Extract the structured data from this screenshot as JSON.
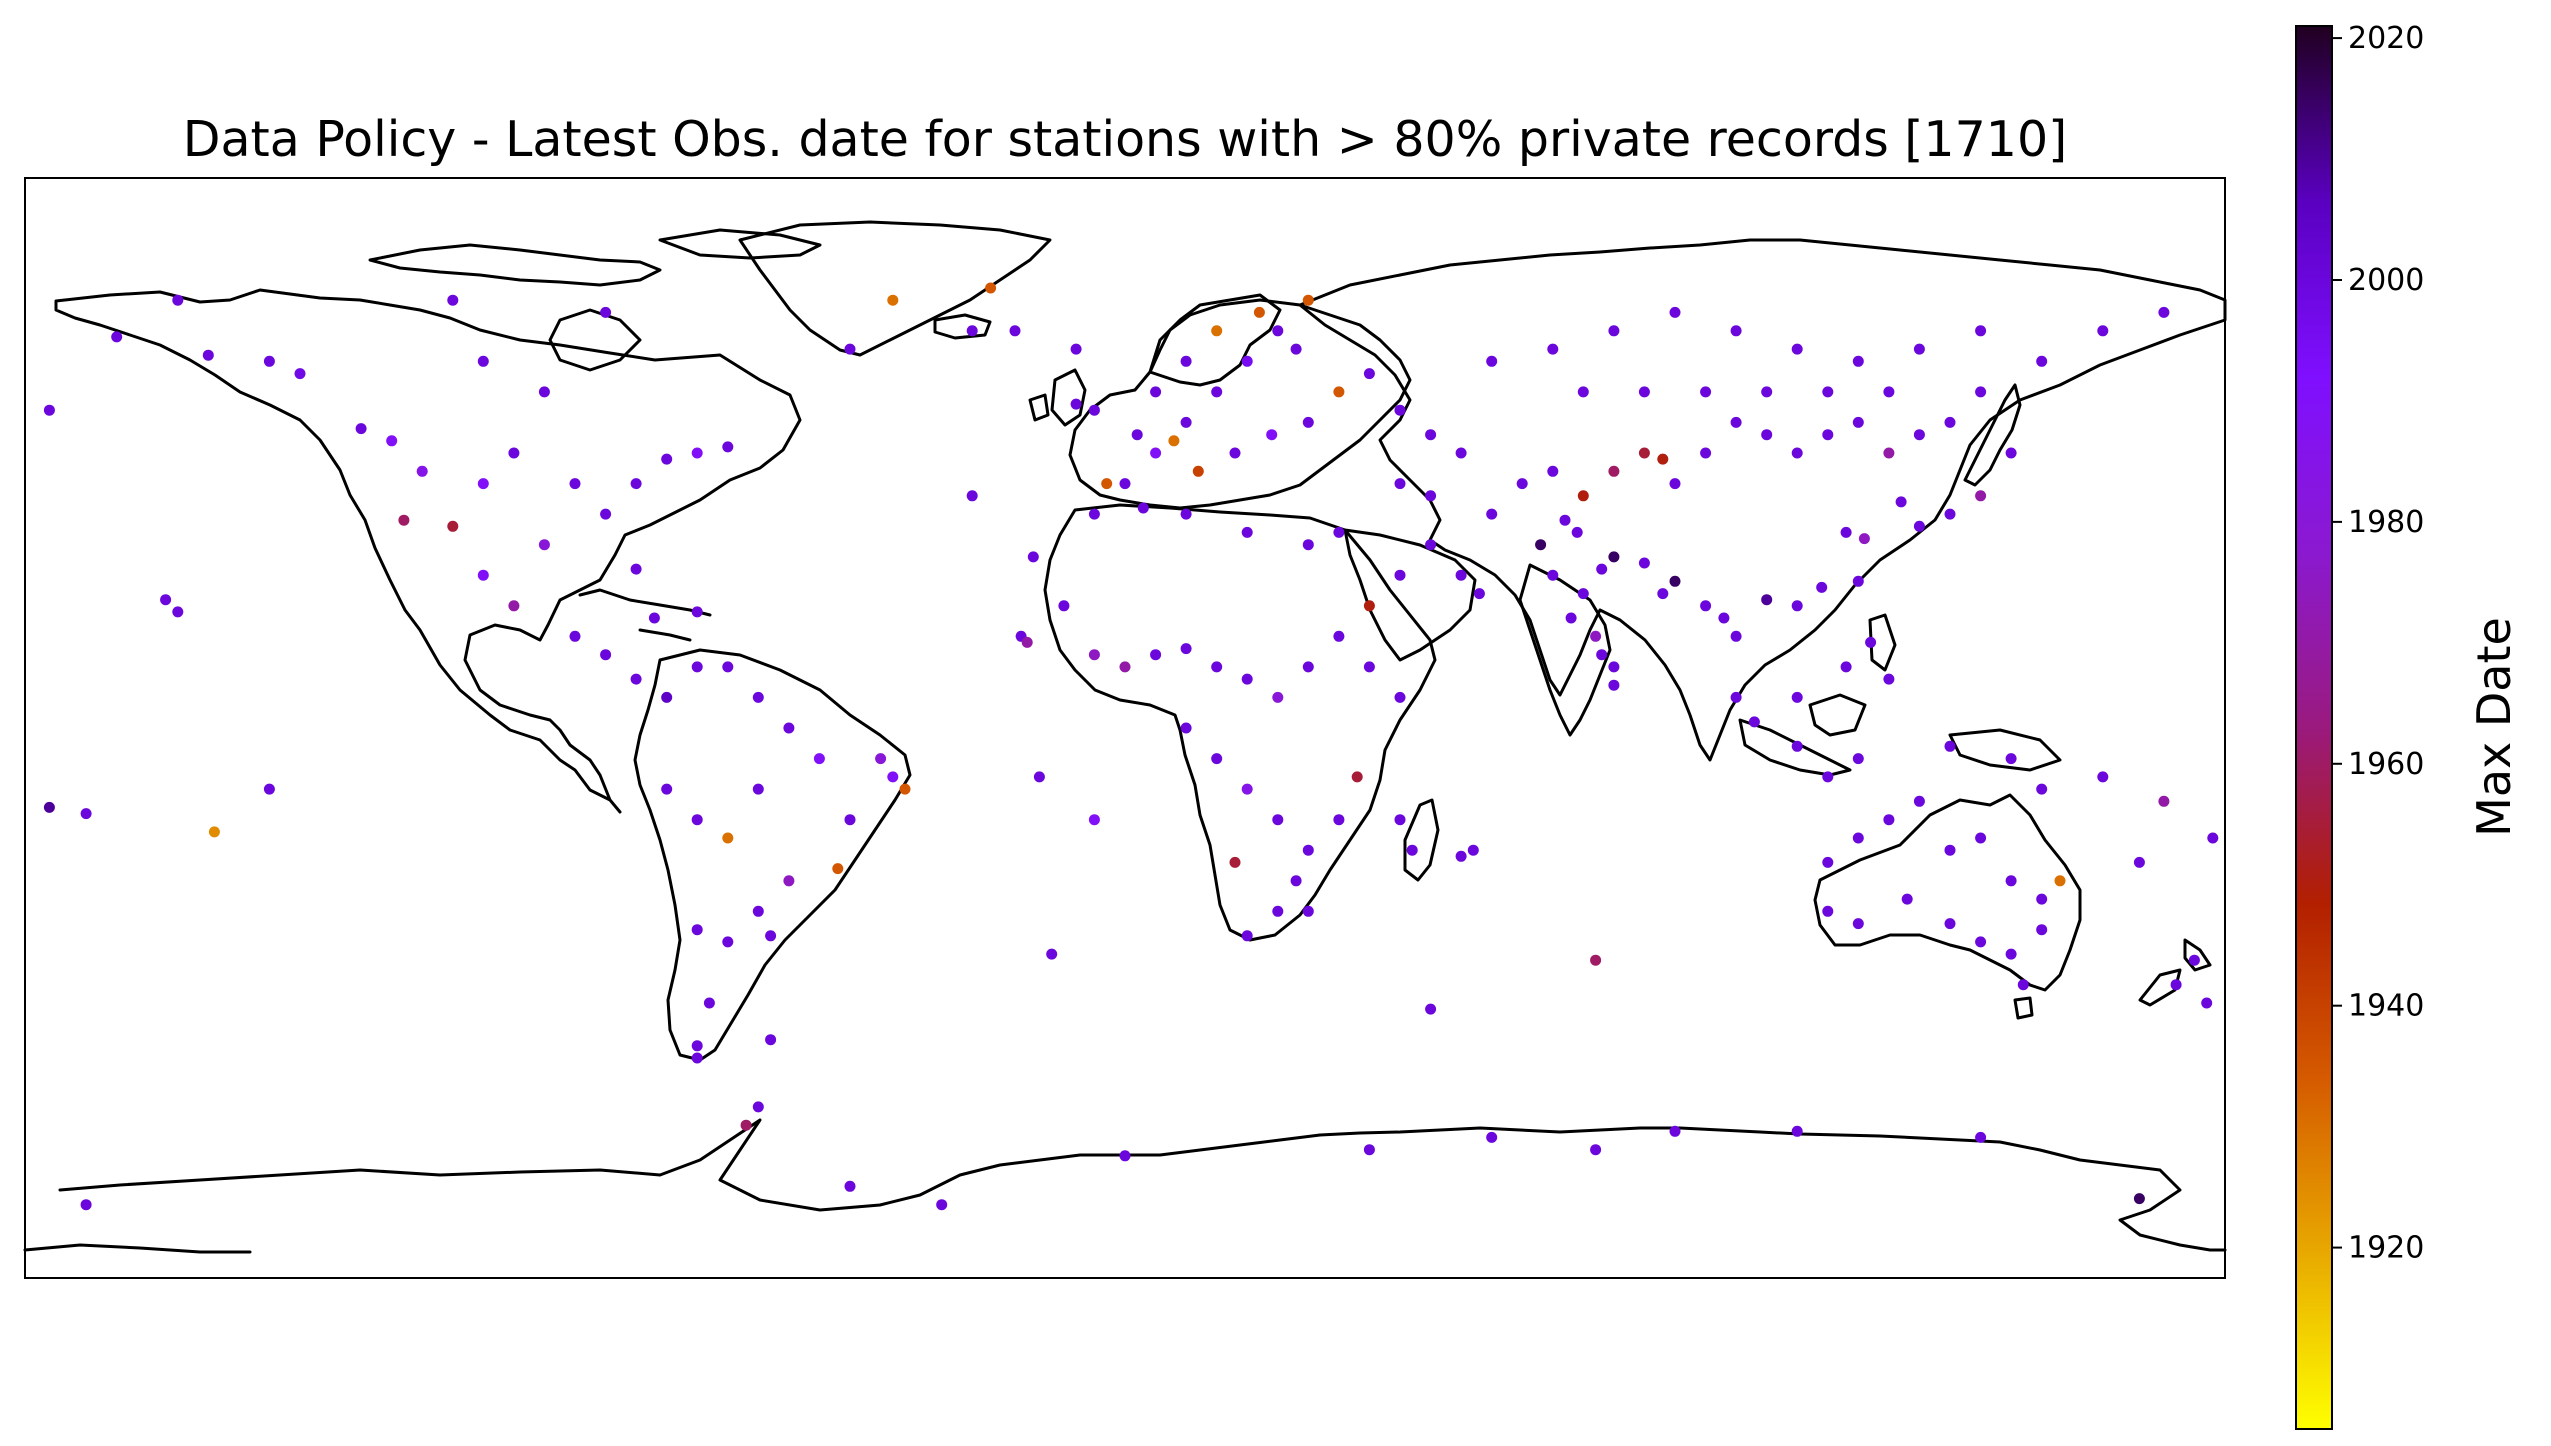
{
  "chart_data": {
    "type": "scatter",
    "title": "Data Policy -   Latest Obs. date for stations with > 80% private records [1710]",
    "projection": "PlateCarree",
    "extent": {
      "lon": [
        -180,
        180
      ],
      "lat": [
        -90,
        90
      ]
    },
    "colorbar": {
      "label": "Max Date",
      "range": [
        1905,
        2021
      ],
      "ticks": [
        "1920",
        "1940",
        "1960",
        "1980",
        "2000",
        "2020"
      ],
      "tick_values": [
        1920,
        1940,
        1960,
        1980,
        2000,
        2020
      ],
      "cmap": [
        "#ffff00",
        "#e8a900",
        "#d55a00",
        "#b21f00",
        "#9a1a7e",
        "#8b19d0",
        "#7f0fff",
        "#5a00c0",
        "#200020"
      ]
    },
    "stations": [
      [
        -176,
        52,
        2000
      ],
      [
        -165,
        64,
        2000
      ],
      [
        -155,
        70,
        2000
      ],
      [
        -150,
        61,
        2000
      ],
      [
        -140,
        60,
        2000
      ],
      [
        -135,
        58,
        1998
      ],
      [
        -125,
        49,
        2000
      ],
      [
        -120,
        47,
        1990
      ],
      [
        -115,
        42,
        1985
      ],
      [
        -110,
        33,
        1955
      ],
      [
        -118,
        34,
        1960
      ],
      [
        -105,
        40,
        1990
      ],
      [
        -100,
        45,
        2000
      ],
      [
        -95,
        30,
        1980
      ],
      [
        -90,
        40,
        2000
      ],
      [
        -85,
        35,
        2000
      ],
      [
        -80,
        40,
        2000
      ],
      [
        -75,
        44,
        2000
      ],
      [
        -70,
        45,
        1990
      ],
      [
        -65,
        46,
        2000
      ],
      [
        -95,
        55,
        2000
      ],
      [
        -105,
        60,
        2000
      ],
      [
        -85,
        68,
        2000
      ],
      [
        -110,
        70,
        2000
      ],
      [
        -80,
        26,
        2000
      ],
      [
        -100,
        20,
        1970
      ],
      [
        -105,
        25,
        1990
      ],
      [
        -90,
        15,
        2000
      ],
      [
        -85,
        12,
        2000
      ],
      [
        -77,
        18,
        2000
      ],
      [
        -70,
        19,
        2000
      ],
      [
        -80,
        8,
        2000
      ],
      [
        -75,
        5,
        2005
      ],
      [
        -70,
        10,
        2000
      ],
      [
        -65,
        10,
        2000
      ],
      [
        -60,
        5,
        2000
      ],
      [
        -55,
        0,
        2000
      ],
      [
        -75,
        -10,
        2000
      ],
      [
        -70,
        -15,
        2000
      ],
      [
        -65,
        -18,
        1930
      ],
      [
        -60,
        -10,
        2000
      ],
      [
        -50,
        -5,
        1990
      ],
      [
        -40,
        -5,
        1980
      ],
      [
        -45,
        -15,
        2000
      ],
      [
        -47,
        -23,
        1935
      ],
      [
        -55,
        -25,
        1975
      ],
      [
        -60,
        -30,
        2000
      ],
      [
        -65,
        -35,
        2000
      ],
      [
        -70,
        -33,
        2000
      ],
      [
        -58,
        -34,
        2000
      ],
      [
        -68,
        -45,
        2000
      ],
      [
        -70,
        -52,
        2000
      ],
      [
        -38,
        -8,
        1990
      ],
      [
        -36,
        -10,
        1935
      ],
      [
        -157,
        21,
        2000
      ],
      [
        -155,
        19,
        2000
      ],
      [
        -170,
        -14,
        2000
      ],
      [
        -149,
        -17,
        1925
      ],
      [
        -140,
        -10,
        2000
      ],
      [
        -176,
        -13,
        2010
      ],
      [
        -45,
        62,
        2000
      ],
      [
        -38,
        70,
        1930
      ],
      [
        -22,
        72,
        1935
      ],
      [
        -18,
        65,
        2000
      ],
      [
        -25,
        65,
        2000
      ],
      [
        -8,
        62,
        2000
      ],
      [
        -25,
        38,
        2000
      ],
      [
        -15,
        28,
        2000
      ],
      [
        -17,
        15,
        2000
      ],
      [
        -10,
        20,
        2000
      ],
      [
        -5,
        35,
        2000
      ],
      [
        0,
        40,
        2000
      ],
      [
        5,
        45,
        1990
      ],
      [
        10,
        50,
        2000
      ],
      [
        15,
        55,
        2000
      ],
      [
        20,
        60,
        1995
      ],
      [
        25,
        65,
        2000
      ],
      [
        30,
        70,
        1935
      ],
      [
        -3,
        40,
        1935
      ],
      [
        2,
        48,
        2000
      ],
      [
        8,
        47,
        1930
      ],
      [
        12,
        42,
        1940
      ],
      [
        18,
        45,
        2000
      ],
      [
        24,
        48,
        1990
      ],
      [
        30,
        50,
        2000
      ],
      [
        35,
        55,
        1935
      ],
      [
        40,
        58,
        2000
      ],
      [
        45,
        52,
        2000
      ],
      [
        50,
        48,
        2000
      ],
      [
        55,
        45,
        2000
      ],
      [
        10,
        60,
        2000
      ],
      [
        15,
        65,
        1930
      ],
      [
        22,
        68,
        1935
      ],
      [
        28,
        62,
        2000
      ],
      [
        5,
        55,
        2000
      ],
      [
        -5,
        52,
        2000
      ],
      [
        -8,
        53,
        2000
      ],
      [
        3,
        36,
        2000
      ],
      [
        10,
        35,
        2000
      ],
      [
        20,
        32,
        2000
      ],
      [
        30,
        30,
        2000
      ],
      [
        35,
        32,
        2000
      ],
      [
        -16,
        14,
        1970
      ],
      [
        -5,
        12,
        1975
      ],
      [
        0,
        10,
        1970
      ],
      [
        5,
        12,
        2000
      ],
      [
        10,
        13,
        2000
      ],
      [
        15,
        10,
        2000
      ],
      [
        20,
        8,
        2000
      ],
      [
        25,
        5,
        1980
      ],
      [
        30,
        10,
        2000
      ],
      [
        35,
        15,
        2000
      ],
      [
        40,
        10,
        2000
      ],
      [
        45,
        5,
        2000
      ],
      [
        10,
        0,
        2000
      ],
      [
        15,
        -5,
        2000
      ],
      [
        20,
        -10,
        1985
      ],
      [
        25,
        -15,
        2000
      ],
      [
        30,
        -20,
        2000
      ],
      [
        35,
        -15,
        2000
      ],
      [
        28,
        -25,
        2000
      ],
      [
        25,
        -30,
        2000
      ],
      [
        20,
        -34,
        2000
      ],
      [
        30,
        -30,
        2000
      ],
      [
        18,
        -22,
        1955
      ],
      [
        38,
        -8,
        1955
      ],
      [
        47,
        -20,
        2000
      ],
      [
        45,
        -15,
        2000
      ],
      [
        55,
        -21,
        2000
      ],
      [
        57,
        -20,
        2000
      ],
      [
        40,
        20,
        1950
      ],
      [
        45,
        25,
        2000
      ],
      [
        50,
        30,
        2000
      ],
      [
        55,
        25,
        2000
      ],
      [
        58,
        22,
        2000
      ],
      [
        45,
        40,
        2000
      ],
      [
        50,
        38,
        2000
      ],
      [
        60,
        35,
        2000
      ],
      [
        65,
        40,
        2000
      ],
      [
        70,
        42,
        2000
      ],
      [
        75,
        38,
        1950
      ],
      [
        80,
        42,
        1960
      ],
      [
        85,
        45,
        1955
      ],
      [
        88,
        44,
        1950
      ],
      [
        90,
        40,
        2000
      ],
      [
        95,
        45,
        2000
      ],
      [
        100,
        50,
        2000
      ],
      [
        105,
        48,
        2000
      ],
      [
        110,
        45,
        2000
      ],
      [
        115,
        48,
        2000
      ],
      [
        120,
        50,
        2000
      ],
      [
        125,
        45,
        1970
      ],
      [
        130,
        48,
        2000
      ],
      [
        135,
        50,
        2000
      ],
      [
        140,
        55,
        2000
      ],
      [
        145,
        45,
        2000
      ],
      [
        135,
        35,
        2000
      ],
      [
        140,
        38,
        1970
      ],
      [
        130,
        33,
        2000
      ],
      [
        127,
        37,
        2000
      ],
      [
        121,
        31,
        1975
      ],
      [
        118,
        32,
        2000
      ],
      [
        114,
        23,
        2000
      ],
      [
        120,
        24,
        2000
      ],
      [
        110,
        20,
        2000
      ],
      [
        105,
        21,
        2010
      ],
      [
        100,
        15,
        2000
      ],
      [
        98,
        18,
        2000
      ],
      [
        95,
        20,
        2000
      ],
      [
        90,
        24,
        2015
      ],
      [
        88,
        22,
        2000
      ],
      [
        85,
        27,
        2000
      ],
      [
        80,
        28,
        2015
      ],
      [
        78,
        26,
        2000
      ],
      [
        75,
        22,
        2000
      ],
      [
        73,
        18,
        2000
      ],
      [
        77,
        15,
        1975
      ],
      [
        78,
        12,
        2000
      ],
      [
        80,
        10,
        2000
      ],
      [
        80,
        7,
        2000
      ],
      [
        70,
        25,
        2000
      ],
      [
        68,
        30,
        2015
      ],
      [
        72,
        34,
        2000
      ],
      [
        74,
        32,
        2000
      ],
      [
        60,
        60,
        2000
      ],
      [
        70,
        62,
        2000
      ],
      [
        80,
        65,
        2000
      ],
      [
        90,
        68,
        2000
      ],
      [
        100,
        65,
        2000
      ],
      [
        110,
        62,
        2000
      ],
      [
        120,
        60,
        2000
      ],
      [
        130,
        62,
        2000
      ],
      [
        140,
        65,
        2000
      ],
      [
        150,
        60,
        2000
      ],
      [
        160,
        65,
        2000
      ],
      [
        170,
        68,
        2000
      ],
      [
        75,
        55,
        2000
      ],
      [
        85,
        55,
        2000
      ],
      [
        95,
        55,
        2000
      ],
      [
        105,
        55,
        2000
      ],
      [
        115,
        55,
        2000
      ],
      [
        125,
        55,
        2000
      ],
      [
        100,
        5,
        2000
      ],
      [
        103,
        1,
        2000
      ],
      [
        110,
        -3,
        2000
      ],
      [
        115,
        -8,
        2000
      ],
      [
        120,
        -5,
        2000
      ],
      [
        125,
        8,
        2000
      ],
      [
        122,
        14,
        2000
      ],
      [
        135,
        -3,
        2000
      ],
      [
        145,
        -5,
        2000
      ],
      [
        150,
        -10,
        2000
      ],
      [
        160,
        -8,
        2000
      ],
      [
        178,
        -18,
        2000
      ],
      [
        166,
        -22,
        2000
      ],
      [
        170,
        -12,
        1970
      ],
      [
        115,
        -30,
        2000
      ],
      [
        115,
        -22,
        2000
      ],
      [
        120,
        -18,
        2000
      ],
      [
        125,
        -15,
        2000
      ],
      [
        130,
        -12,
        2000
      ],
      [
        135,
        -20,
        2000
      ],
      [
        140,
        -18,
        2000
      ],
      [
        145,
        -25,
        2000
      ],
      [
        150,
        -28,
        2000
      ],
      [
        153,
        -25,
        1930
      ],
      [
        150,
        -33,
        2000
      ],
      [
        145,
        -37,
        2000
      ],
      [
        140,
        -35,
        2000
      ],
      [
        135,
        -32,
        2000
      ],
      [
        128,
        -28,
        2000
      ],
      [
        120,
        -32,
        2000
      ],
      [
        147,
        -42,
        2000
      ],
      [
        172,
        -42,
        2000
      ],
      [
        175,
        -38,
        2000
      ],
      [
        177,
        -45,
        2000
      ],
      [
        110,
        5,
        2000
      ],
      [
        118,
        10,
        2000
      ],
      [
        -60,
        -62,
        2000
      ],
      [
        -62,
        -65,
        1960
      ],
      [
        -45,
        -75,
        2000
      ],
      [
        -30,
        -78,
        2000
      ],
      [
        0,
        -70,
        2000
      ],
      [
        40,
        -69,
        2000
      ],
      [
        60,
        -67,
        2000
      ],
      [
        77,
        -69,
        2000
      ],
      [
        90,
        -66,
        2000
      ],
      [
        110,
        -66,
        2000
      ],
      [
        140,
        -67,
        2000
      ],
      [
        166,
        -77,
        2015
      ],
      [
        -170,
        -78,
        2000
      ],
      [
        77,
        -38,
        1960
      ],
      [
        50,
        -46,
        2000
      ],
      [
        -12,
        -37,
        2000
      ],
      [
        -14,
        -8,
        2000
      ],
      [
        -5,
        -15,
        1990
      ],
      [
        -70,
        -54,
        2000
      ],
      [
        -58,
        -51,
        2000
      ]
    ]
  }
}
